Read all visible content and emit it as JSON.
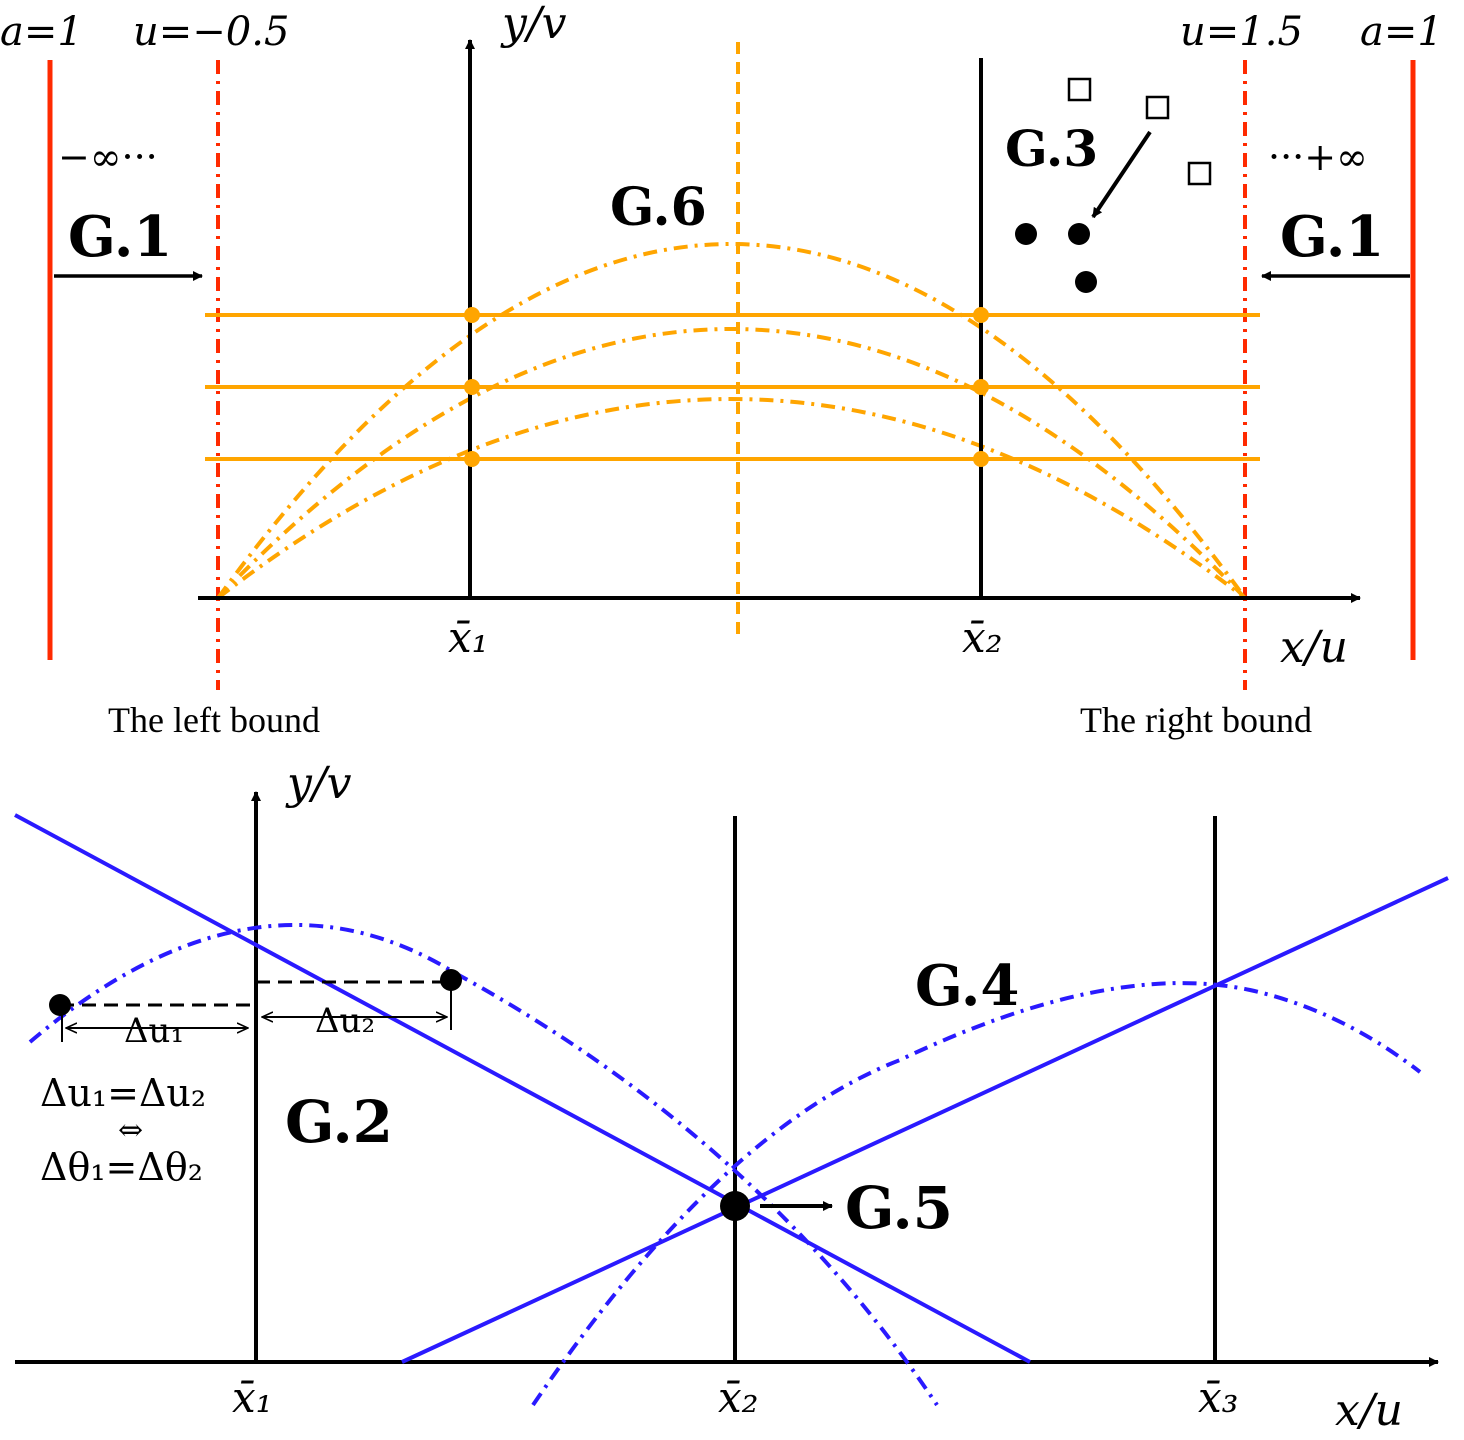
{
  "top": {
    "left_a_label": "a=1",
    "left_u_label": "u=−0.5",
    "right_u_label": "u=1.5",
    "right_a_label": "a=1",
    "y_axis_label": "y/v",
    "x_axis_label": "x/u",
    "neg_inf_label": "−∞···",
    "pos_inf_label": "···+∞",
    "g1_left": "G.1",
    "g1_right": "G.1",
    "g3": "G.3",
    "g6": "G.6",
    "xbar1": "x̄₁",
    "xbar2": "x̄₂",
    "left_bound": "The left bound",
    "right_bound": "The right bound"
  },
  "bottom": {
    "y_axis_label": "y/v",
    "x_axis_label": "x/u",
    "g2": "G.2",
    "g4": "G.4",
    "g5": "G.5",
    "du1": "Δu₁",
    "du2": "Δu₂",
    "eq1": "Δu₁=Δu₂",
    "iff": "⇔",
    "eq2": "Δθ₁=Δθ₂",
    "xbar1": "x̄₁",
    "xbar2": "x̄₂",
    "xbar3": "x̄₃"
  },
  "colors": {
    "red": "#ff2a00",
    "orange": "#ffa500",
    "blue": "#2a1aff",
    "black": "#000000"
  }
}
